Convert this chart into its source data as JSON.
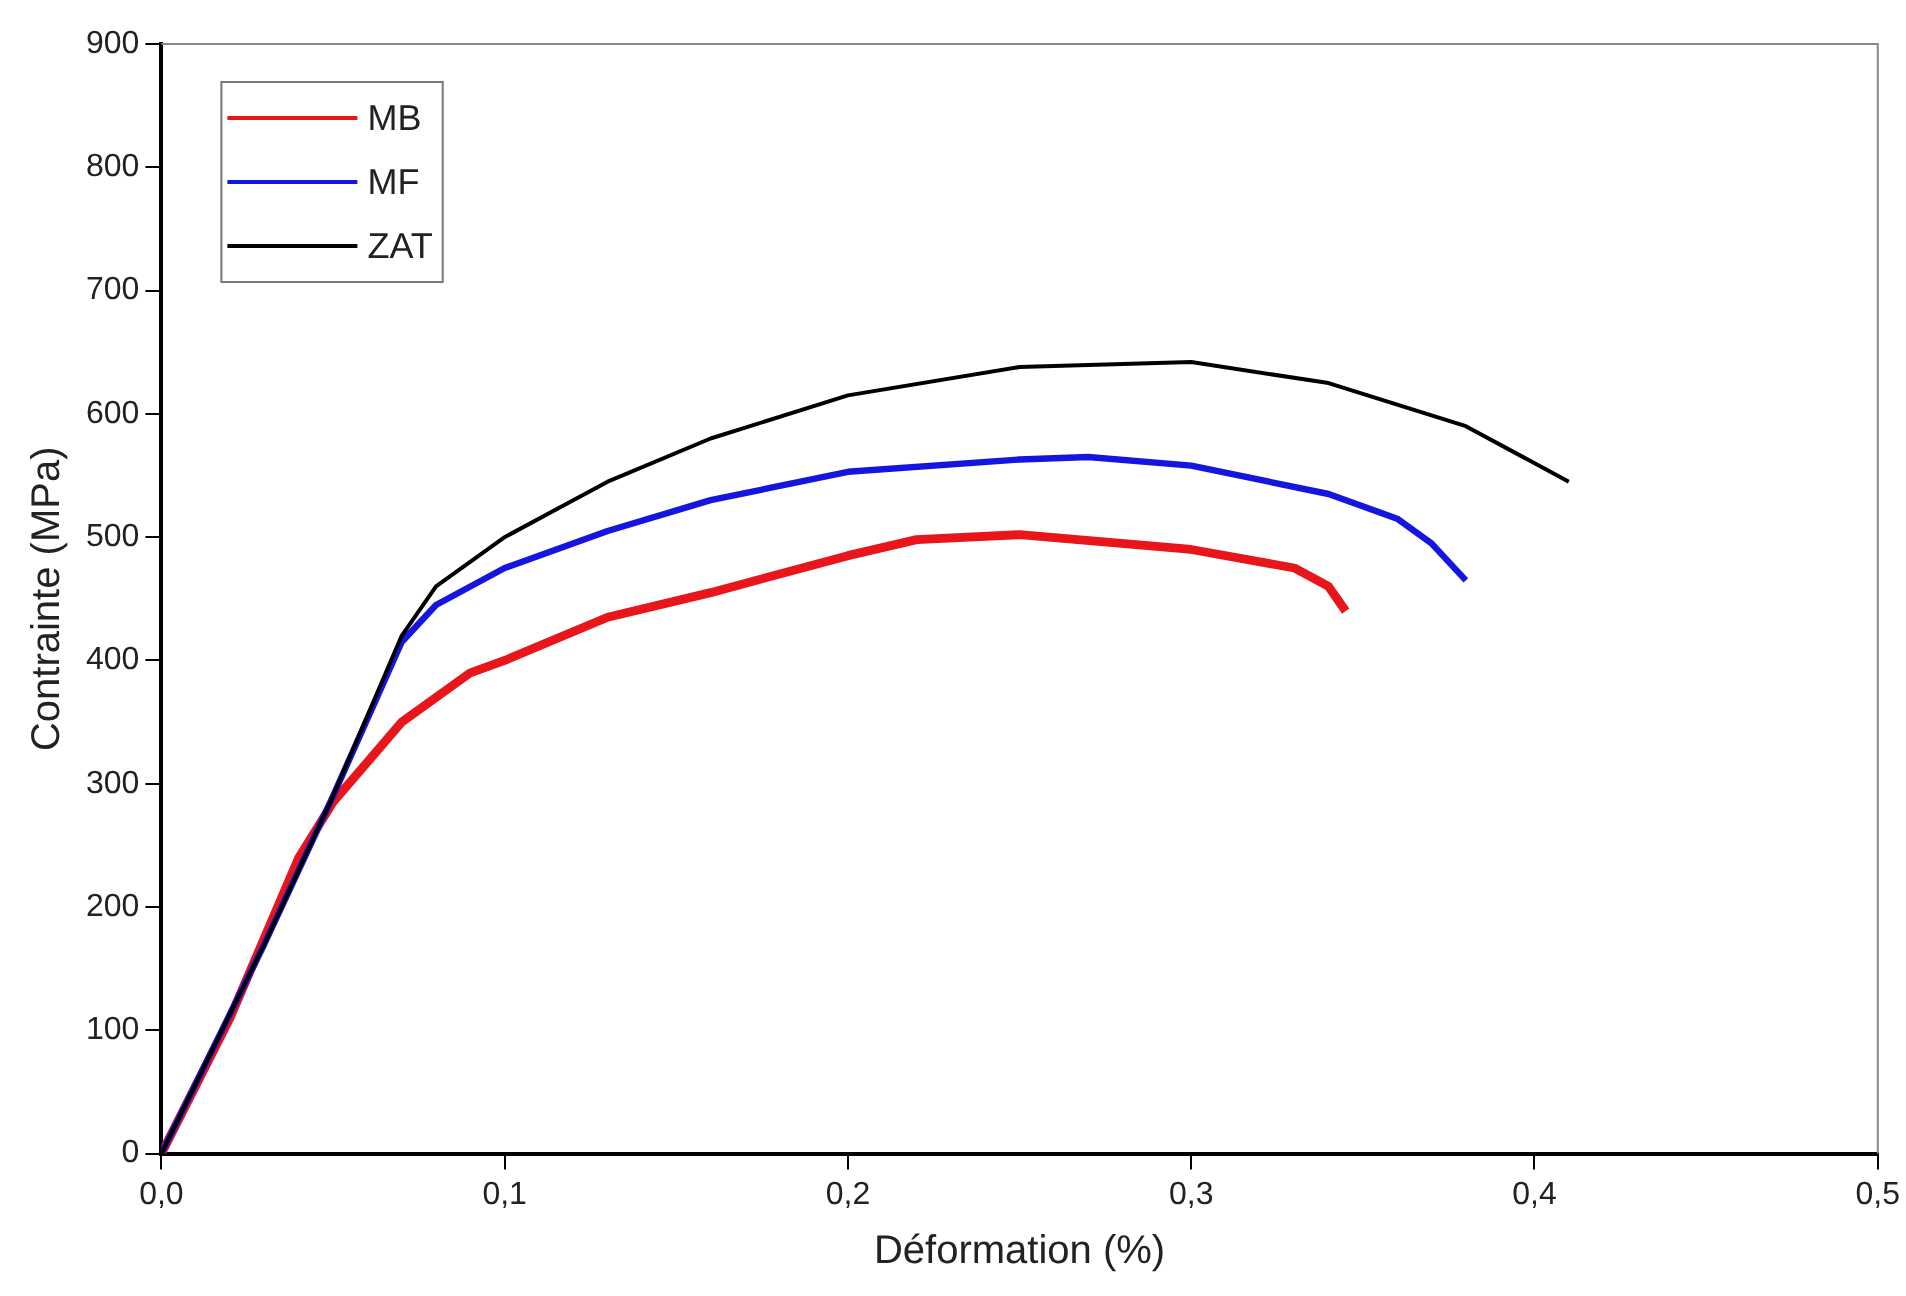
{
  "chart_data": {
    "type": "line",
    "xlabel": "Déformation (%)",
    "ylabel": "Contrainte (MPa)",
    "xlim": [
      0,
      0.5
    ],
    "xticks": [
      {
        "value": 0,
        "label": "0,0"
      },
      {
        "value": 0.1,
        "label": "0,1"
      },
      {
        "value": 0.2,
        "label": "0,2"
      },
      {
        "value": 0.3,
        "label": "0,3"
      },
      {
        "value": 0.4,
        "label": "0,4"
      },
      {
        "value": 0.5,
        "label": "0,5"
      }
    ],
    "ylim": [
      0,
      900
    ],
    "yticks": [
      0,
      100,
      200,
      300,
      400,
      500,
      600,
      700,
      800,
      900
    ],
    "grid": false,
    "legend": "top left",
    "marker": "none",
    "line_style": "solid",
    "series": [
      {
        "name": "MB",
        "color": "#e8151b",
        "x": [
          0,
          0.02,
          0.04,
          0.05,
          0.07,
          0.09,
          0.1,
          0.13,
          0.16,
          0.2,
          0.22,
          0.25,
          0.3,
          0.33,
          0.34,
          0.345
        ],
        "values": [
          0,
          110,
          240,
          285,
          350,
          390,
          400,
          435,
          455,
          485,
          498,
          502,
          490,
          475,
          460,
          440
        ]
      },
      {
        "name": "MF",
        "color": "#1515e0",
        "x": [
          0,
          0.03,
          0.04,
          0.05,
          0.07,
          0.08,
          0.1,
          0.13,
          0.16,
          0.2,
          0.25,
          0.27,
          0.3,
          0.34,
          0.36,
          0.37,
          0.38
        ],
        "values": [
          0,
          170,
          230,
          290,
          415,
          445,
          475,
          505,
          530,
          553,
          563,
          565,
          558,
          535,
          515,
          495,
          465
        ]
      },
      {
        "name": "ZAT",
        "color": "#000000",
        "x": [
          0,
          0.03,
          0.05,
          0.07,
          0.08,
          0.1,
          0.13,
          0.16,
          0.2,
          0.25,
          0.3,
          0.34,
          0.38,
          0.41
        ],
        "values": [
          0,
          170,
          290,
          420,
          460,
          500,
          545,
          580,
          615,
          638,
          642,
          625,
          590,
          545
        ]
      }
    ]
  }
}
